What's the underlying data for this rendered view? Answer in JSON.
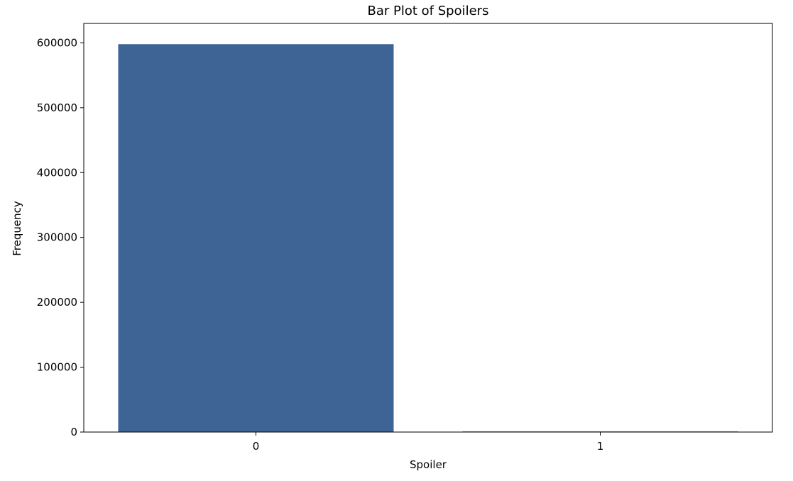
{
  "chart_data": {
    "type": "bar",
    "title": "Bar Plot of Spoilers",
    "xlabel": "Spoiler",
    "ylabel": "Frequency",
    "categories": [
      "0",
      "1"
    ],
    "values": [
      598000,
      1200
    ],
    "colors": [
      "#3e6496",
      "#e08a2c"
    ],
    "ylim": [
      0,
      630000
    ],
    "yticks": [
      0,
      100000,
      200000,
      300000,
      400000,
      500000,
      600000
    ],
    "ytick_labels": [
      "0",
      "100000",
      "200000",
      "300000",
      "400000",
      "500000",
      "600000"
    ],
    "grid": false,
    "legend": false
  }
}
